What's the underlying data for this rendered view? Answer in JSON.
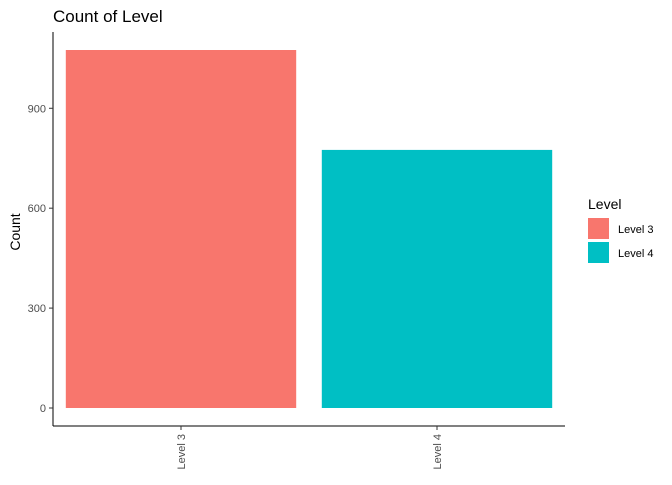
{
  "chart_data": {
    "type": "bar",
    "title": "Count of Level",
    "xlabel": "",
    "ylabel": "Count",
    "categories": [
      "Level 3",
      "Level 4"
    ],
    "values": [
      1075,
      775
    ],
    "colors": [
      "#F8766D",
      "#00BFC4"
    ],
    "ylim": [
      0,
      1075
    ],
    "yticks": [
      0,
      300,
      600,
      900
    ],
    "grid": false,
    "legend": {
      "title": "Level",
      "position": "right",
      "items": [
        {
          "label": "Level 3",
          "color": "#F8766D"
        },
        {
          "label": "Level 4",
          "color": "#00BFC4"
        }
      ]
    }
  }
}
